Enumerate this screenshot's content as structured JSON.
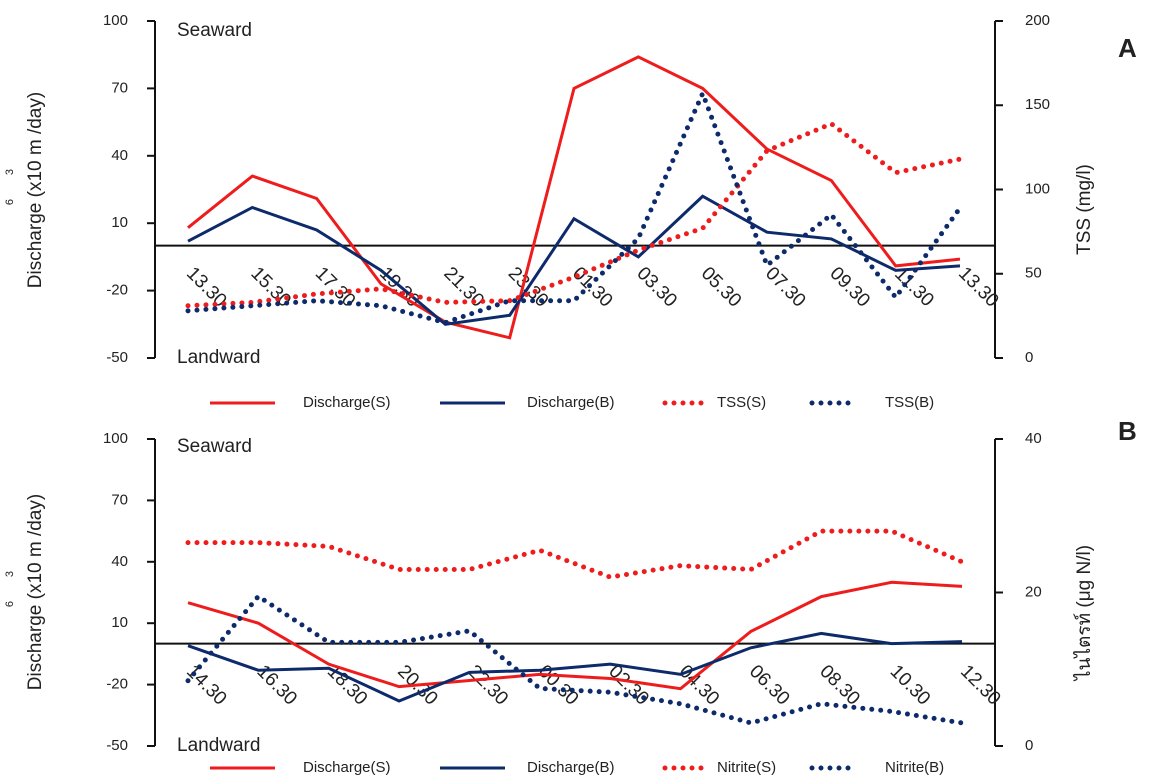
{
  "chart_data": [
    {
      "type": "line",
      "panel_label": "A",
      "annotations": [
        "Seaward",
        "Landward"
      ],
      "ylabel": "Discharge (x10 m /day)",
      "ylabel_superscripts": [
        "6",
        "3"
      ],
      "y2label": "TSS (mg/l)",
      "categories": [
        "13.30",
        "15.30",
        "17.30",
        "19.30",
        "21.30",
        "23.30",
        "01.30",
        "03.30",
        "05.30",
        "07.30",
        "09.30",
        "11.30",
        "13.30"
      ],
      "ylim": [
        -50,
        100
      ],
      "yticks": [
        -50,
        -20,
        10,
        40,
        70,
        100
      ],
      "y2lim": [
        0,
        200
      ],
      "y2ticks": [
        0,
        50,
        100,
        150,
        200
      ],
      "series": [
        {
          "name": "Discharge(S)",
          "color": "#ee1c1c",
          "style": "solid",
          "values": [
            8,
            31,
            21,
            -17,
            -34,
            -41,
            70,
            84,
            70,
            43,
            29,
            -9,
            -6
          ]
        },
        {
          "name": "Discharge(B)",
          "color": "#0d2a6b",
          "style": "solid",
          "values": [
            2,
            17,
            7,
            -11,
            -35,
            -31,
            12,
            -5,
            22,
            6,
            3,
            -11,
            -9
          ]
        },
        {
          "name": "TSS(S)",
          "color": "#ee1c1c",
          "style": "dotted",
          "axis": "y2",
          "values": [
            31,
            33,
            38,
            41,
            33,
            34,
            48,
            64,
            77,
            123,
            139,
            110,
            118
          ]
        },
        {
          "name": "TSS(B)",
          "color": "#0d2a6b",
          "style": "dotted",
          "axis": "y2",
          "values": [
            28,
            31,
            34,
            31,
            21,
            34,
            34,
            71,
            157,
            55,
            85,
            36,
            89
          ]
        }
      ]
    },
    {
      "type": "line",
      "panel_label": "B",
      "annotations": [
        "Seaward",
        "Landward"
      ],
      "ylabel": "Discharge (x10 m /day)",
      "ylabel_superscripts": [
        "6",
        "3"
      ],
      "y2label": "ไนไตรท์ (μg N/l)",
      "categories": [
        "14.30",
        "16.30",
        "18.30",
        "20.30",
        "22.30",
        "00.30",
        "02.30",
        "04.30",
        "06.30",
        "08.30",
        "10.30",
        "12.30"
      ],
      "ylim": [
        -50,
        100
      ],
      "yticks": [
        -50,
        -20,
        10,
        40,
        70,
        100
      ],
      "y2lim": [
        0,
        40
      ],
      "y2ticks": [
        0,
        20,
        40
      ],
      "series": [
        {
          "name": "Discharge(S)",
          "color": "#ee1c1c",
          "style": "solid",
          "values": [
            20,
            10,
            -10,
            -21,
            -18,
            -15,
            -17,
            -22,
            6,
            23,
            30,
            28
          ]
        },
        {
          "name": "Discharge(B)",
          "color": "#0d2a6b",
          "style": "solid",
          "values": [
            -1,
            -13,
            -12,
            -28,
            -14,
            -13,
            -10,
            -15,
            -2,
            5,
            0,
            1
          ]
        },
        {
          "name": "Nitrite(S)",
          "color": "#ee1c1c",
          "style": "dotted",
          "axis": "y2",
          "values": [
            26.5,
            26.5,
            26,
            23,
            23,
            25.5,
            22,
            23.5,
            23,
            28,
            28,
            24
          ]
        },
        {
          "name": "Nitrite(B)",
          "color": "#0d2a6b",
          "style": "dotted",
          "axis": "y2",
          "values": [
            8.5,
            19.5,
            13.5,
            13.5,
            15,
            7.5,
            7,
            5.5,
            3,
            5.5,
            4.5,
            3
          ]
        }
      ]
    }
  ]
}
